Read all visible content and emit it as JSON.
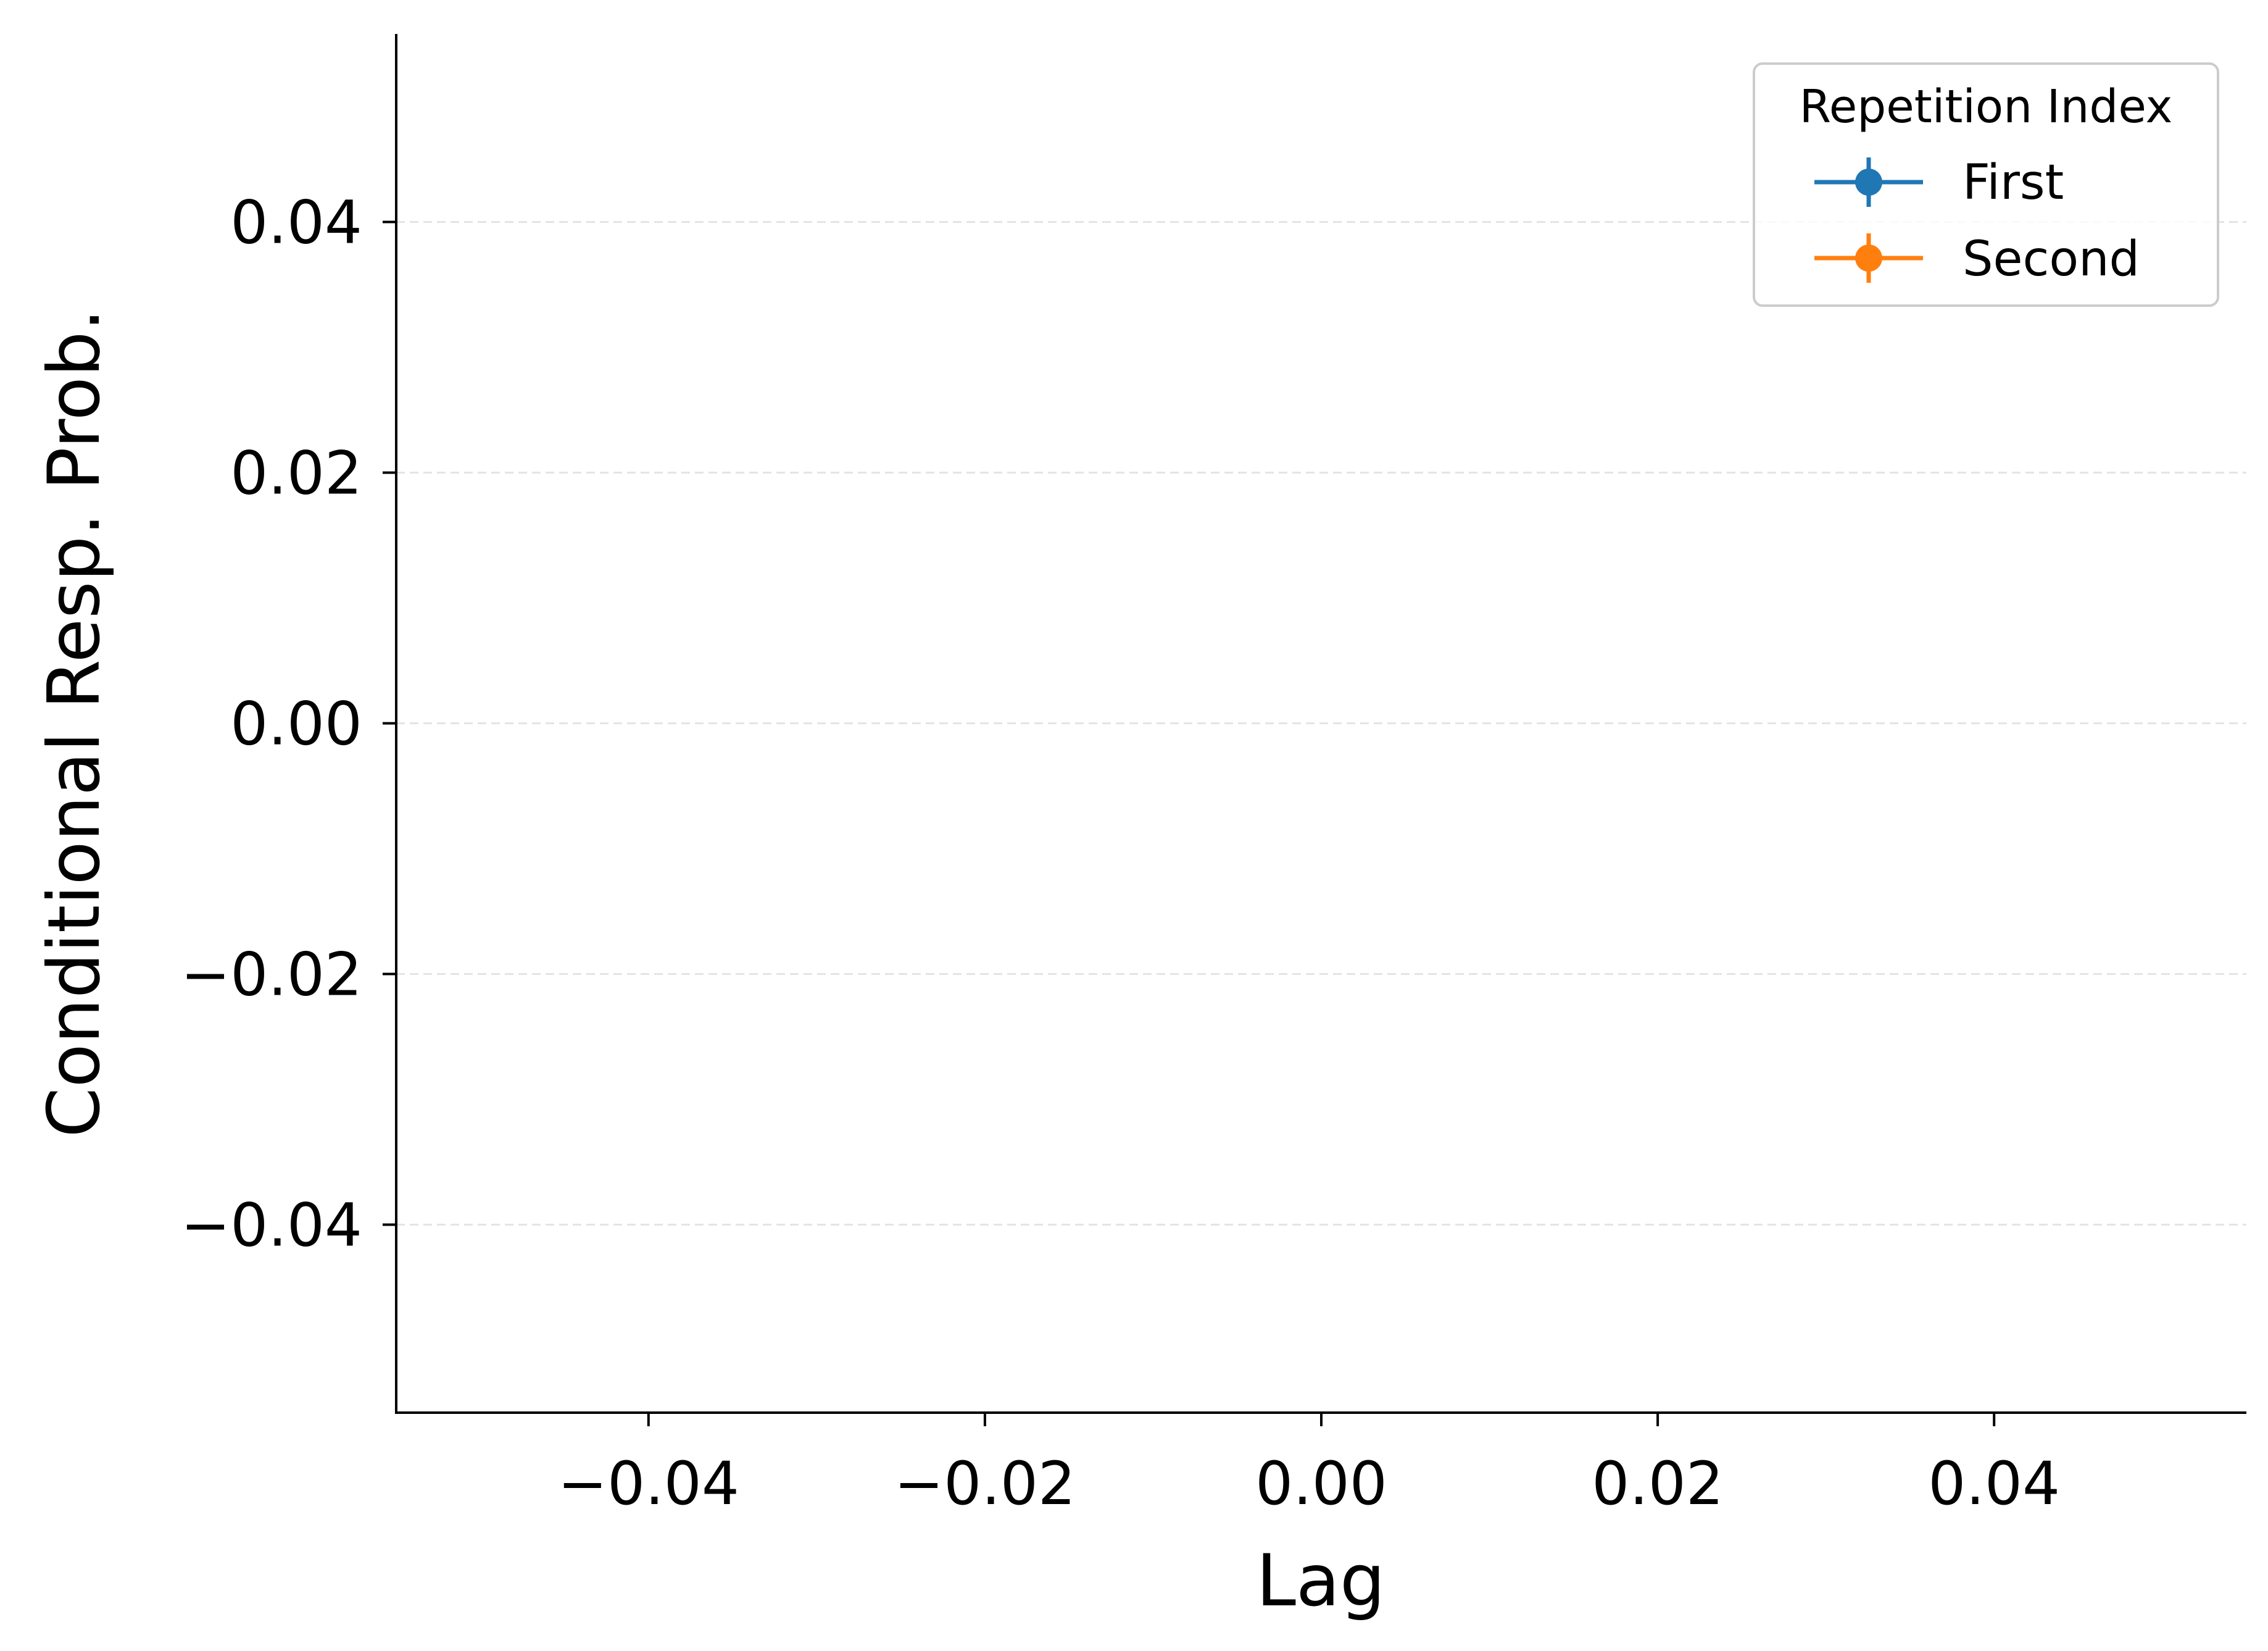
{
  "chart_data": {
    "type": "line",
    "xlabel": "Lag",
    "ylabel": "Conditional Resp. Prob.",
    "xlim": [
      -0.055,
      0.055
    ],
    "ylim": [
      -0.055,
      0.055
    ],
    "x_ticks": [
      -0.04,
      -0.02,
      0.0,
      0.02,
      0.04
    ],
    "y_ticks": [
      -0.04,
      -0.02,
      0.0,
      0.02,
      0.04
    ],
    "x_tick_labels": [
      "−0.04",
      "−0.02",
      "0.00",
      "0.02",
      "0.04"
    ],
    "y_tick_labels": [
      "−0.04",
      "−0.02",
      "0.00",
      "0.02",
      "0.04"
    ],
    "grid": {
      "y": true,
      "x": false,
      "style": "dashed"
    },
    "legend": {
      "title": "Repetition Index",
      "placement": "top-right",
      "entries": [
        {
          "label": "First",
          "color": "#1f77b4"
        },
        {
          "label": "Second",
          "color": "#ff7f0e"
        }
      ]
    },
    "series": [
      {
        "name": "First",
        "color": "#1f77b4",
        "x": [],
        "y": []
      },
      {
        "name": "Second",
        "color": "#ff7f0e",
        "x": [],
        "y": []
      }
    ]
  }
}
